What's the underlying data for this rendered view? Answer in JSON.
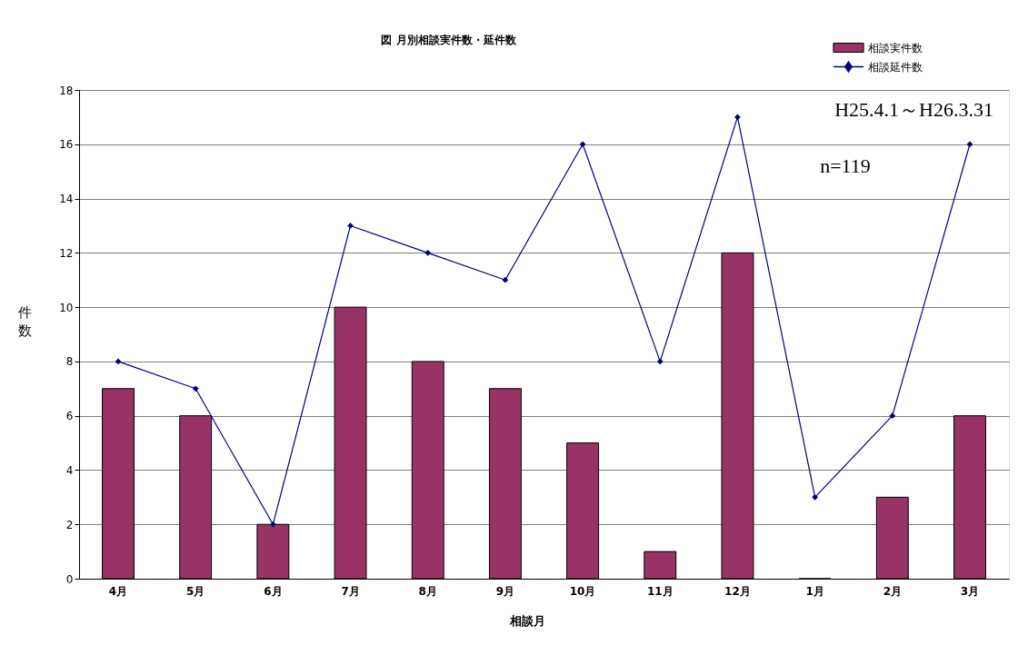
{
  "chart_data": {
    "type": "bar",
    "title": "図 月別相談実件数・延件数",
    "xlabel": "相談月",
    "ylabel": "件数",
    "categories": [
      "4月",
      "5月",
      "6月",
      "7月",
      "8月",
      "9月",
      "10月",
      "11月",
      "12月",
      "1月",
      "2月",
      "3月"
    ],
    "series": [
      {
        "name": "相談実件数",
        "color": "#993366",
        "values": [
          7,
          6,
          2,
          10,
          8,
          7,
          5,
          1,
          12,
          0,
          3,
          6
        ]
      },
      {
        "name": "相談延件数",
        "type": "line",
        "color": "#000080",
        "values": [
          8,
          7,
          2,
          13,
          12,
          11,
          16,
          8,
          17,
          3,
          6,
          16
        ]
      }
    ],
    "ylim": [
      0,
      18
    ],
    "yticks": [
      0,
      2,
      4,
      6,
      8,
      10,
      12,
      14,
      16,
      18
    ],
    "grid": "y",
    "legend": "top right",
    "marker": "diamond",
    "line_style": "solid",
    "annotations": [
      "H25.4.1～H26.3.31",
      "n=119"
    ]
  }
}
